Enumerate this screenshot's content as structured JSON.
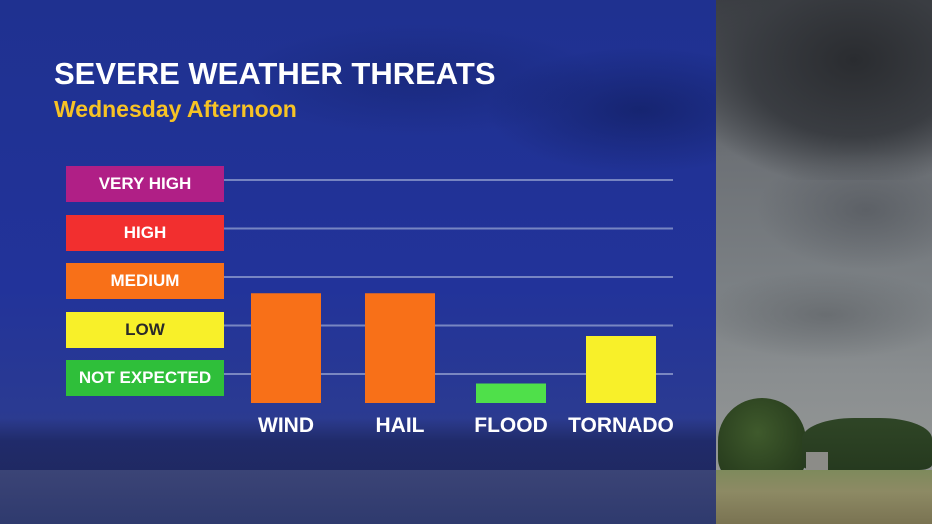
{
  "title": "SEVERE WEATHER THREATS",
  "subtitle": "Wednesday Afternoon",
  "levels": [
    {
      "label": "NOT EXPECTED",
      "bg": "#2fbf3a",
      "fg": "#ffffff"
    },
    {
      "label": "LOW",
      "bg": "#f8f029",
      "fg": "#2a2a2a"
    },
    {
      "label": "MEDIUM",
      "bg": "#f87018",
      "fg": "#ffffff"
    },
    {
      "label": "HIGH",
      "bg": "#f22f2f",
      "fg": "#ffffff"
    },
    {
      "label": "VERY HIGH",
      "bg": "#b01f86",
      "fg": "#ffffff"
    }
  ],
  "chart_data": {
    "type": "bar",
    "categories": [
      "WIND",
      "HAIL",
      "FLOOD",
      "TORNADO"
    ],
    "values": [
      2.5,
      2.5,
      0.6,
      1.6
    ],
    "colors": [
      "#f87018",
      "#f87018",
      "#4fe04a",
      "#f8f029"
    ],
    "y_levels": [
      "NOT EXPECTED",
      "LOW",
      "MEDIUM",
      "HIGH",
      "VERY HIGH"
    ],
    "ylim": [
      0,
      5
    ],
    "grid": true
  }
}
